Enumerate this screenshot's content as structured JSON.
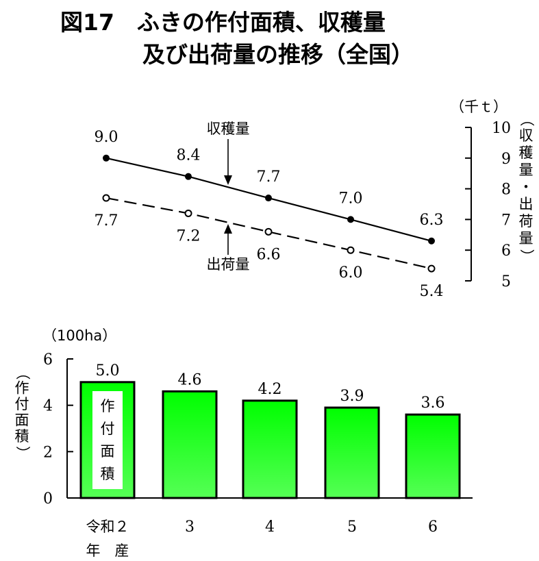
{
  "title": {
    "line1": "図17　ふきの作付面積、収穫量",
    "line2": "及び出荷量の推移（全国）"
  },
  "chart_data": [
    {
      "type": "line",
      "categories": [
        "令和２年産",
        "3",
        "4",
        "5",
        "6"
      ],
      "unit": "（千ｔ）",
      "ylabel": "（収穫量・出荷量）",
      "ylim": [
        5,
        10
      ],
      "yticks": [
        "5",
        "6",
        "7",
        "8",
        "9",
        "10"
      ],
      "series": [
        {
          "name": "収穫量",
          "values": [
            9.0,
            8.4,
            7.7,
            7.0,
            6.3
          ],
          "labels": [
            "9.0",
            "8.4",
            "7.7",
            "7.0",
            "6.3"
          ],
          "style": "solid-filled-markers",
          "color": "#000000"
        },
        {
          "name": "出荷量",
          "values": [
            7.7,
            7.2,
            6.6,
            6.0,
            5.4
          ],
          "labels": [
            "7.7",
            "7.2",
            "6.6",
            "6.0",
            "5.4"
          ],
          "style": "dashed-open-markers",
          "color": "#000000"
        }
      ]
    },
    {
      "type": "bar",
      "categories": [
        "令和２年産",
        "3",
        "4",
        "5",
        "6"
      ],
      "category_lines": [
        [
          "令和２",
          "年　産"
        ],
        [
          "3"
        ],
        [
          "4"
        ],
        [
          "5"
        ],
        [
          "6"
        ]
      ],
      "unit": "（100ha）",
      "ylabel": "（作付面積）",
      "ylim": [
        0,
        6
      ],
      "yticks": [
        "0",
        "2",
        "4",
        "6"
      ],
      "values": [
        5.0,
        4.6,
        4.2,
        3.9,
        3.6
      ],
      "labels": [
        "5.0",
        "4.6",
        "4.2",
        "3.9",
        "3.6"
      ],
      "inbar_label": [
        "作",
        "付",
        "面",
        "積"
      ],
      "bar_colors": {
        "top": "#00ff00",
        "bottom": "#55ff55",
        "outline": "#000000"
      }
    }
  ]
}
